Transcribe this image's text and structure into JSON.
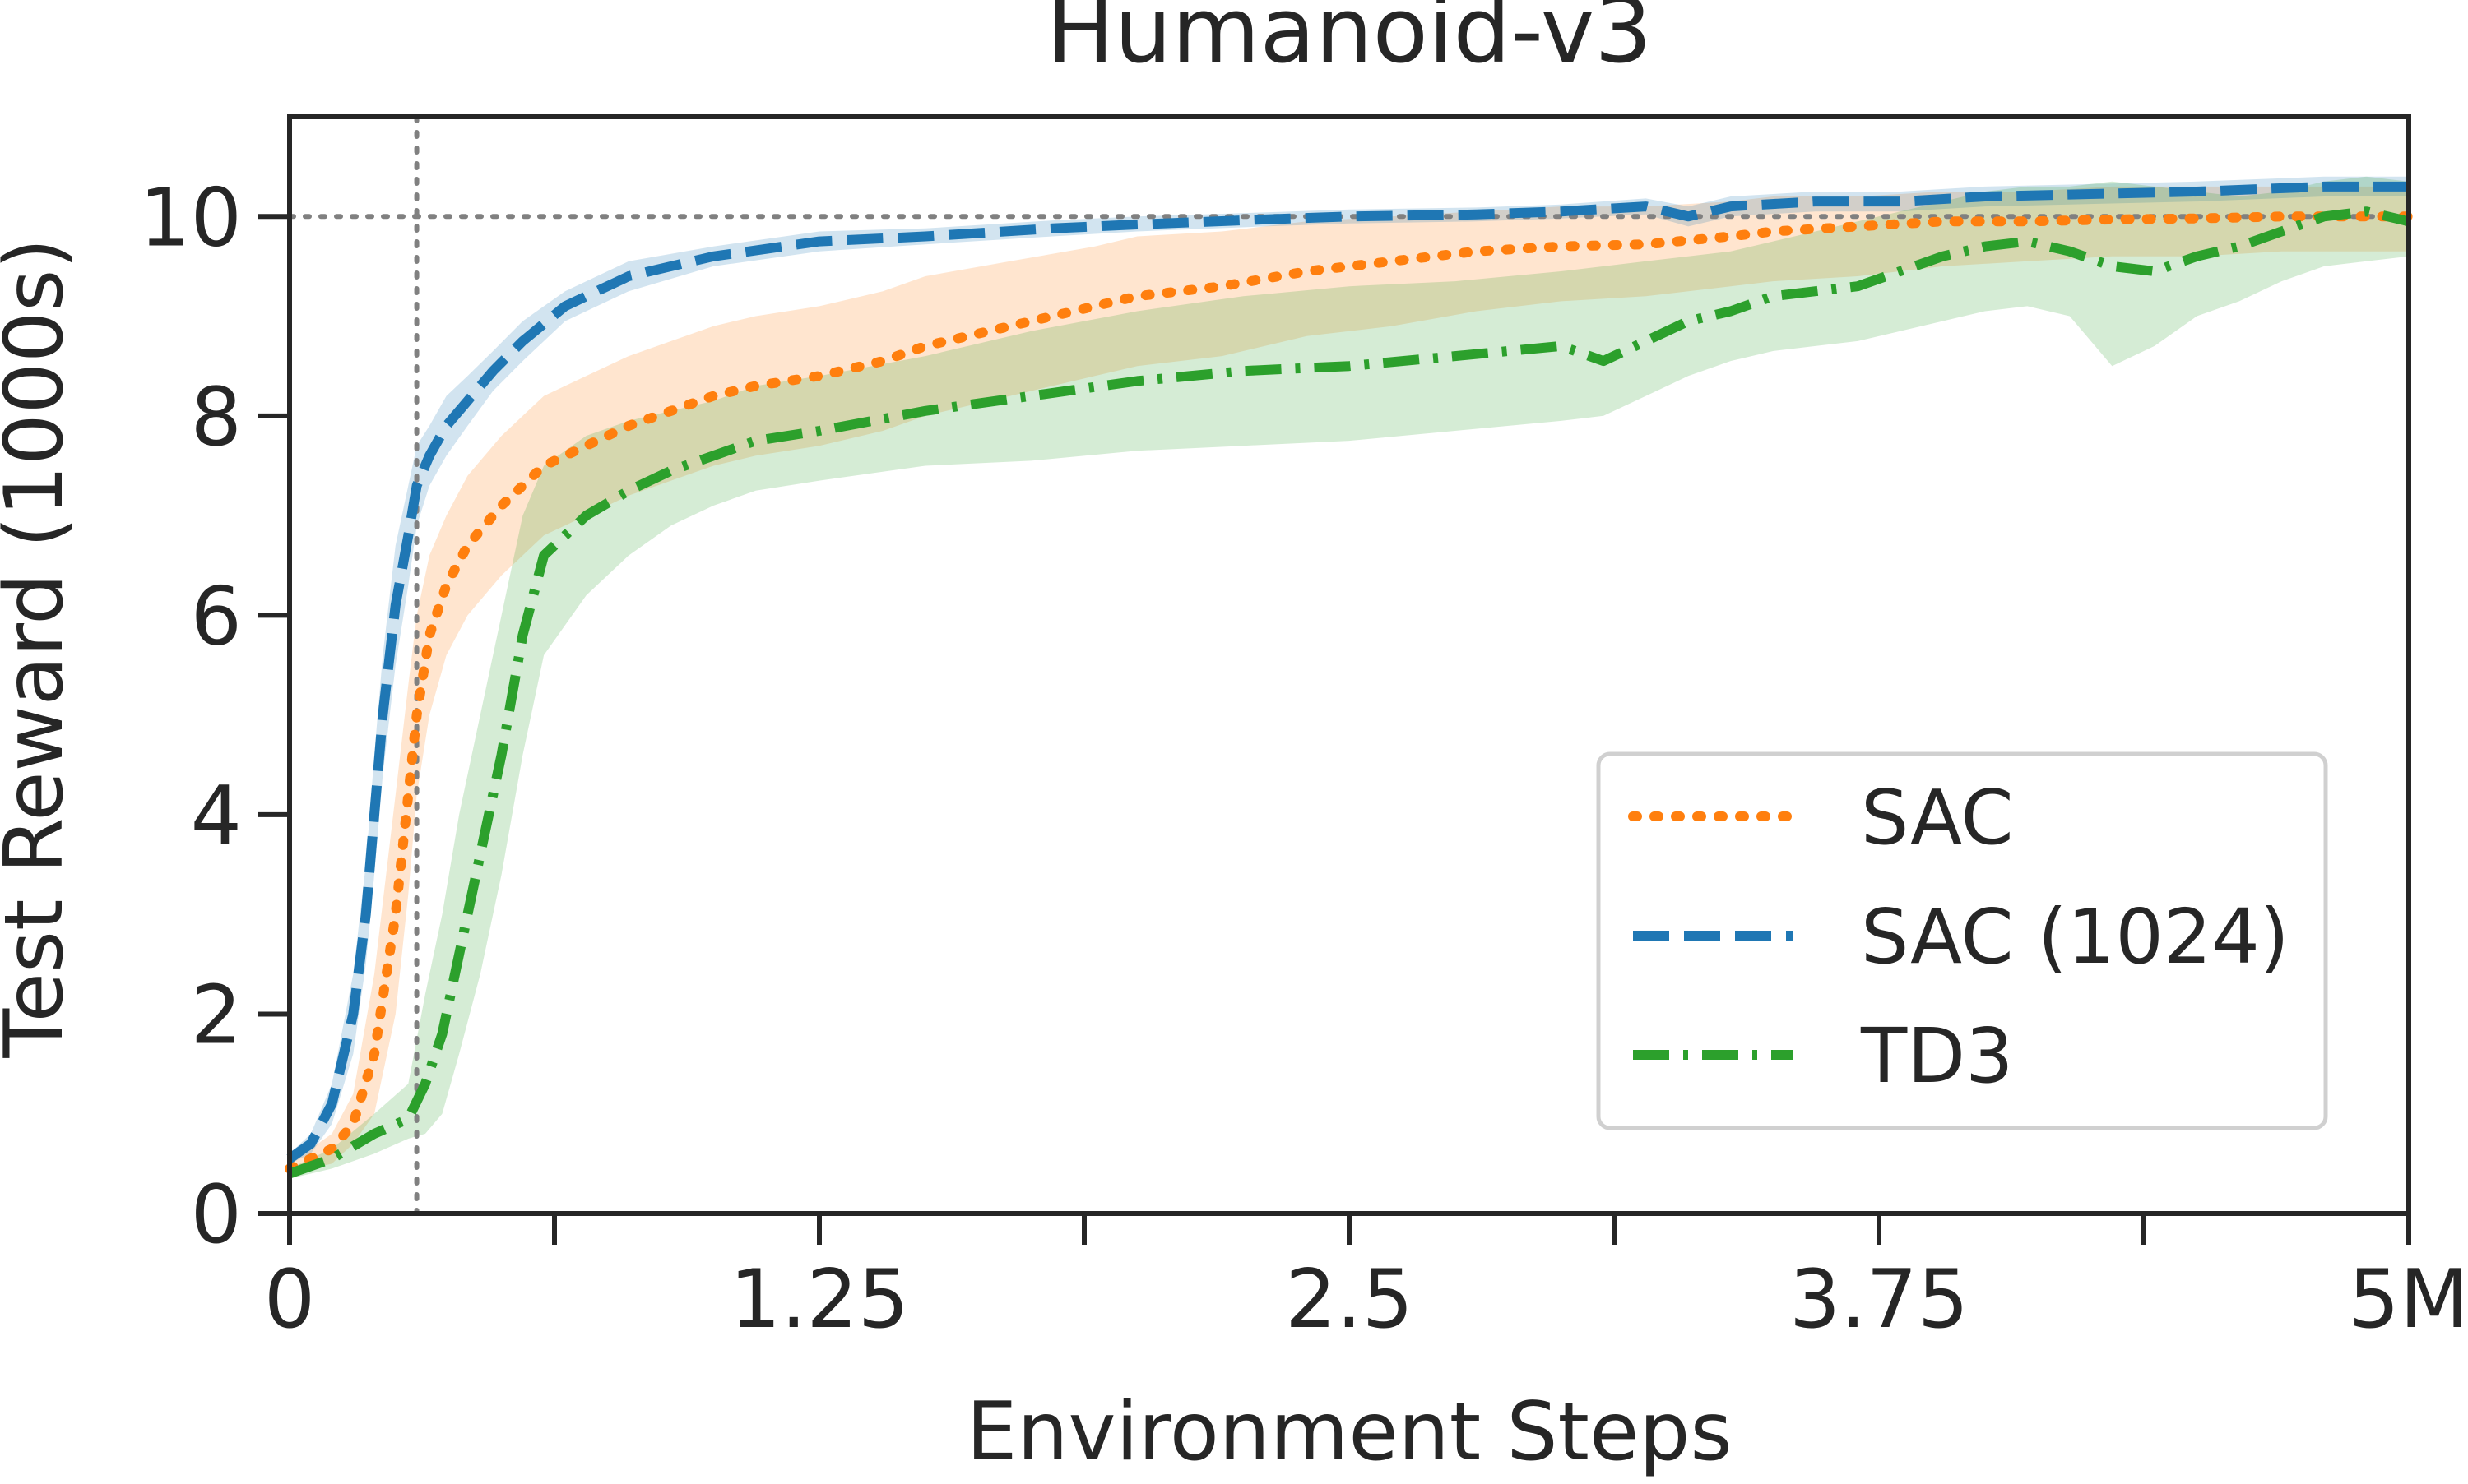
{
  "chart_data": {
    "type": "line",
    "title": "Humanoid-v3",
    "xlabel": "Environment Steps",
    "ylabel": "Test Reward (1000s)",
    "xlim": [
      0,
      5000000
    ],
    "ylim": [
      0,
      11
    ],
    "x_ticks": [
      {
        "value": 0,
        "label": "0"
      },
      {
        "value": 625000,
        "label": ""
      },
      {
        "value": 1250000,
        "label": "1.25"
      },
      {
        "value": 1875000,
        "label": ""
      },
      {
        "value": 2500000,
        "label": "2.5"
      },
      {
        "value": 3125000,
        "label": ""
      },
      {
        "value": 3750000,
        "label": "3.75"
      },
      {
        "value": 4375000,
        "label": ""
      },
      {
        "value": 5000000,
        "label": "5M"
      }
    ],
    "y_ticks": [
      {
        "value": 0,
        "label": "0"
      },
      {
        "value": 2,
        "label": "2"
      },
      {
        "value": 4,
        "label": "4"
      },
      {
        "value": 6,
        "label": "6"
      },
      {
        "value": 8,
        "label": "8"
      },
      {
        "value": 10,
        "label": "10"
      }
    ],
    "grid": false,
    "legend_position": "lower-right",
    "reference_lines": [
      {
        "orientation": "horizontal",
        "value": 10,
        "style": "dotted",
        "color": "#808080"
      },
      {
        "orientation": "vertical",
        "value": 300000,
        "style": "dotted",
        "color": "#808080"
      }
    ],
    "series": [
      {
        "name": "SAC",
        "color": "#ff7f0e",
        "style": "dotted",
        "x": [
          0,
          100000,
          150000,
          200000,
          250000,
          280000,
          300000,
          330000,
          370000,
          420000,
          500000,
          600000,
          700000,
          800000,
          900000,
          1000000,
          1100000,
          1250000,
          1400000,
          1500000,
          1700000,
          1900000,
          2000000,
          2200000,
          2400000,
          2600000,
          2800000,
          3000000,
          3200000,
          3400000,
          3500000,
          3700000,
          3900000,
          4100000,
          4300000,
          4500000,
          4700000,
          5000000
        ],
        "y": [
          0.45,
          0.65,
          0.9,
          1.6,
          3.0,
          4.2,
          5.0,
          5.8,
          6.3,
          6.7,
          7.1,
          7.5,
          7.7,
          7.9,
          8.05,
          8.2,
          8.3,
          8.4,
          8.55,
          8.7,
          8.9,
          9.1,
          9.2,
          9.3,
          9.45,
          9.55,
          9.65,
          9.7,
          9.72,
          9.8,
          9.85,
          9.9,
          9.95,
          9.95,
          9.97,
          9.98,
          10.0,
          10.0
        ],
        "band_lower": [
          0.4,
          0.5,
          0.7,
          1.0,
          2.0,
          3.2,
          4.2,
          5.0,
          5.6,
          6.0,
          6.4,
          6.8,
          7.0,
          7.2,
          7.35,
          7.5,
          7.6,
          7.7,
          7.85,
          8.0,
          8.2,
          8.4,
          8.5,
          8.6,
          8.8,
          8.9,
          9.05,
          9.15,
          9.2,
          9.3,
          9.35,
          9.4,
          9.5,
          9.55,
          9.6,
          9.6,
          9.65,
          9.65
        ],
        "band_upper": [
          0.5,
          0.8,
          1.2,
          2.4,
          4.2,
          5.3,
          6.0,
          6.6,
          7.0,
          7.4,
          7.8,
          8.2,
          8.4,
          8.6,
          8.75,
          8.9,
          9.0,
          9.1,
          9.25,
          9.4,
          9.55,
          9.7,
          9.8,
          9.85,
          9.95,
          10.0,
          10.05,
          10.1,
          10.1,
          10.15,
          10.2,
          10.2,
          10.25,
          10.25,
          10.3,
          10.3,
          10.3,
          10.3
        ]
      },
      {
        "name": "SAC (1024)",
        "color": "#1f77b4",
        "style": "dashed",
        "x": [
          0,
          50000,
          100000,
          150000,
          180000,
          200000,
          220000,
          250000,
          280000,
          300000,
          330000,
          370000,
          420000,
          480000,
          550000,
          650000,
          800000,
          1000000,
          1250000,
          1500000,
          1800000,
          2000000,
          2300000,
          2500000,
          2800000,
          3000000,
          3200000,
          3300000,
          3400000,
          3600000,
          3800000,
          4000000,
          4200000,
          4500000,
          4800000,
          5000000
        ],
        "y": [
          0.55,
          0.7,
          1.1,
          2.0,
          3.0,
          4.0,
          5.0,
          6.1,
          6.8,
          7.3,
          7.6,
          7.9,
          8.15,
          8.45,
          8.75,
          9.1,
          9.4,
          9.6,
          9.75,
          9.8,
          9.88,
          9.92,
          9.97,
          10.0,
          10.02,
          10.05,
          10.1,
          10.0,
          10.1,
          10.15,
          10.15,
          10.2,
          10.22,
          10.25,
          10.3,
          10.3
        ],
        "band_lower": [
          0.5,
          0.6,
          0.9,
          1.6,
          2.5,
          3.4,
          4.4,
          5.5,
          6.3,
          6.9,
          7.3,
          7.6,
          7.9,
          8.25,
          8.55,
          8.95,
          9.25,
          9.5,
          9.65,
          9.72,
          9.8,
          9.85,
          9.9,
          9.93,
          9.95,
          9.98,
          10.02,
          9.9,
          10.0,
          10.05,
          10.05,
          10.1,
          10.12,
          10.15,
          10.2,
          10.2
        ],
        "band_upper": [
          0.6,
          0.8,
          1.3,
          2.4,
          3.5,
          4.6,
          5.6,
          6.7,
          7.3,
          7.7,
          7.9,
          8.2,
          8.4,
          8.65,
          8.95,
          9.25,
          9.55,
          9.7,
          9.85,
          9.88,
          9.96,
          10.0,
          10.04,
          10.07,
          10.09,
          10.12,
          10.18,
          10.1,
          10.2,
          10.25,
          10.25,
          10.3,
          10.32,
          10.35,
          10.4,
          10.4
        ]
      },
      {
        "name": "TD3",
        "color": "#2ca02c",
        "style": "dashdot",
        "x": [
          0,
          100000,
          200000,
          280000,
          320000,
          360000,
          400000,
          450000,
          500000,
          550000,
          600000,
          700000,
          800000,
          900000,
          1000000,
          1100000,
          1250000,
          1500000,
          1750000,
          2000000,
          2250000,
          2500000,
          2750000,
          3000000,
          3100000,
          3200000,
          3300000,
          3400000,
          3500000,
          3600000,
          3700000,
          3800000,
          3900000,
          4000000,
          4100000,
          4200000,
          4300000,
          4400000,
          4500000,
          4600000,
          4700000,
          4800000,
          4900000,
          5000000
        ],
        "y": [
          0.4,
          0.55,
          0.8,
          0.95,
          1.3,
          1.8,
          2.6,
          3.6,
          4.6,
          5.8,
          6.6,
          7.0,
          7.25,
          7.45,
          7.6,
          7.75,
          7.85,
          8.05,
          8.2,
          8.35,
          8.45,
          8.5,
          8.6,
          8.7,
          8.55,
          8.75,
          8.95,
          9.05,
          9.2,
          9.25,
          9.3,
          9.45,
          9.6,
          9.7,
          9.75,
          9.65,
          9.5,
          9.45,
          9.6,
          9.7,
          9.85,
          10.0,
          10.05,
          9.95
        ],
        "band_lower": [
          0.35,
          0.45,
          0.6,
          0.75,
          0.8,
          1.0,
          1.6,
          2.4,
          3.4,
          4.6,
          5.6,
          6.2,
          6.6,
          6.9,
          7.1,
          7.25,
          7.35,
          7.5,
          7.55,
          7.65,
          7.7,
          7.75,
          7.85,
          7.95,
          8.0,
          8.2,
          8.4,
          8.55,
          8.65,
          8.7,
          8.75,
          8.85,
          8.95,
          9.05,
          9.1,
          9.0,
          8.5,
          8.7,
          9.0,
          9.15,
          9.35,
          9.5,
          9.55,
          9.6
        ],
        "band_upper": [
          0.45,
          0.65,
          1.0,
          1.3,
          2.2,
          3.0,
          4.0,
          5.0,
          6.0,
          7.0,
          7.5,
          7.8,
          7.95,
          8.05,
          8.15,
          8.3,
          8.4,
          8.6,
          8.85,
          9.05,
          9.2,
          9.3,
          9.35,
          9.45,
          9.5,
          9.55,
          9.6,
          9.65,
          9.75,
          9.85,
          9.95,
          10.05,
          10.15,
          10.25,
          10.3,
          10.3,
          10.35,
          10.3,
          10.25,
          10.2,
          10.25,
          10.35,
          10.4,
          10.35
        ]
      }
    ]
  }
}
